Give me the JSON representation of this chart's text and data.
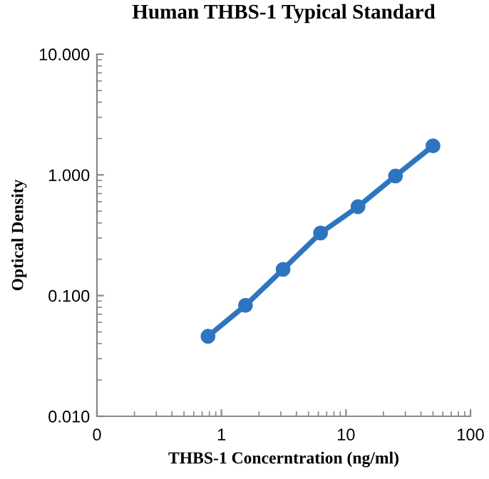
{
  "chart_data": {
    "type": "line",
    "title": "Human THBS-1 Typical Standard",
    "xlabel": "THBS-1 Concerntration (ng/ml)",
    "ylabel": "Optical Density",
    "x": [
      0.78,
      1.56,
      3.125,
      6.25,
      12.5,
      25,
      50
    ],
    "series": [
      {
        "color": "#2e75c0",
        "values": [
          0.046,
          0.083,
          0.165,
          0.33,
          0.545,
          0.98,
          1.74
        ]
      }
    ],
    "log": "xy",
    "marker": "circle",
    "line_style": "solid",
    "grid": false,
    "legend": false,
    "xlim": [
      0.1,
      100
    ],
    "xticks": [
      {
        "value": 0.1,
        "label": "0"
      },
      1,
      10,
      100
    ],
    "ylim": [
      0.01,
      10
    ],
    "yticks": [
      {
        "value": 0.01,
        "label": "0.010"
      },
      {
        "value": 0.1,
        "label": "0.100"
      },
      {
        "value": 1,
        "label": "1.000"
      },
      {
        "value": 10,
        "label": "10.000"
      }
    ]
  }
}
